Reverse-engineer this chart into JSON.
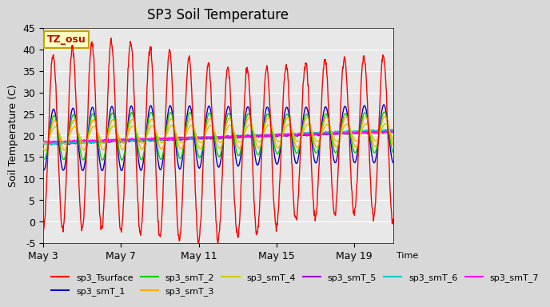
{
  "title": "SP3 Soil Temperature",
  "ylabel": "Soil Temperature (C)",
  "xlabel": "Time",
  "ylim": [
    -5,
    45
  ],
  "xlim_start": 0,
  "xlim_end": 18,
  "xtick_positions": [
    0,
    4,
    8,
    12,
    16
  ],
  "xtick_labels": [
    "May 3",
    "May 7",
    "May 11",
    "May 15",
    "May 19"
  ],
  "ytick_positions": [
    -5,
    0,
    5,
    10,
    15,
    20,
    25,
    30,
    35,
    40,
    45
  ],
  "bg_color": "#e8e8e8",
  "plot_bg_color": "#e8e8e8",
  "annotation_text": "TZ_osu",
  "annotation_bg": "#ffffc0",
  "annotation_border": "#c8a000",
  "annotation_text_color": "#cc0000",
  "legend_entries": [
    {
      "label": "sp3_Tsurface",
      "color": "#ff0000"
    },
    {
      "label": "sp3_smT_1",
      "color": "#0000cc"
    },
    {
      "label": "sp3_smT_2",
      "color": "#00cc00"
    },
    {
      "label": "sp3_smT_3",
      "color": "#ffaa00"
    },
    {
      "label": "sp3_smT_4",
      "color": "#cccc00"
    },
    {
      "label": "sp3_smT_5",
      "color": "#9900cc"
    },
    {
      "label": "sp3_smT_6",
      "color": "#00cccc"
    },
    {
      "label": "sp3_smT_7",
      "color": "#ff00ff"
    }
  ]
}
